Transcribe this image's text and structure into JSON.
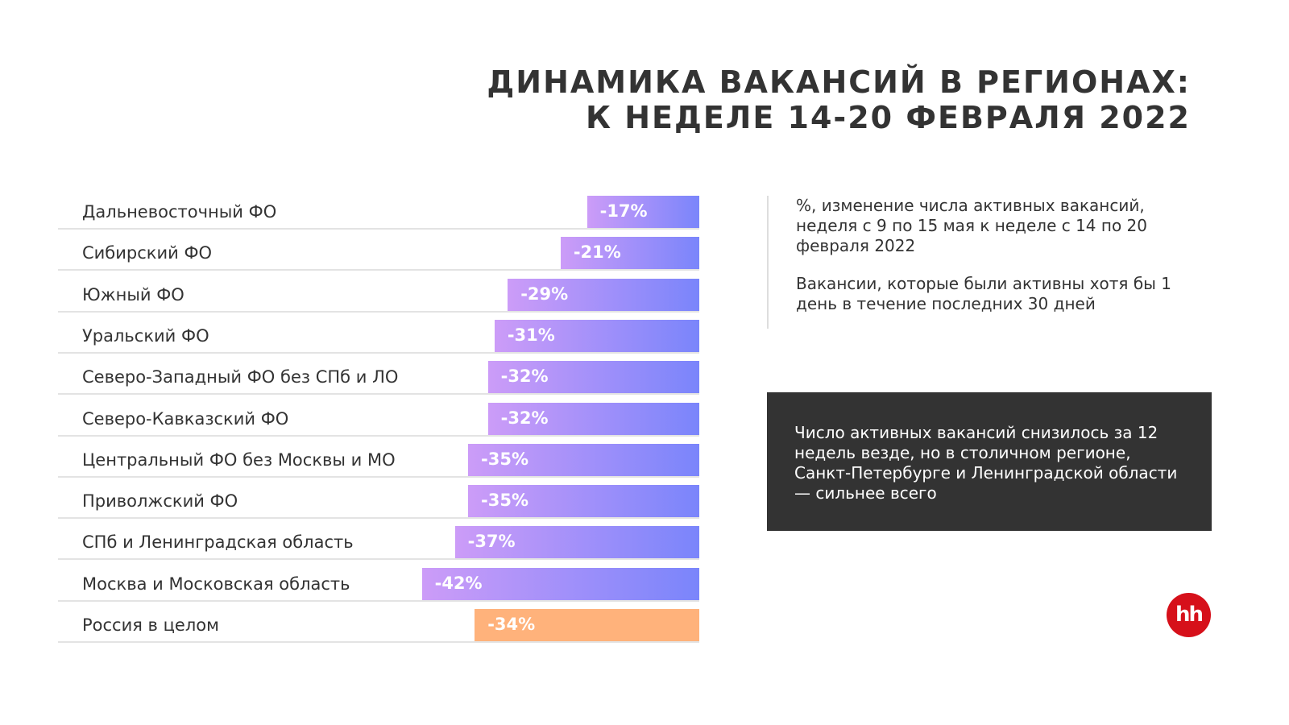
{
  "title": {
    "line1": "ДИНАМИКА ВАКАНСИЙ В РЕГИОНАХ:",
    "line2": "К НЕДЕЛЕ 14-20 ФЕВРАЛЯ 2022"
  },
  "chart_data": {
    "type": "bar",
    "orientation": "horizontal",
    "unit": "%",
    "categories": [
      "Дальневосточный ФО",
      "Сибирский ФО",
      "Южный ФО",
      "Уральский ФО",
      "Северо-Западный ФО без СПб и ЛО",
      "Северо-Кавказский ФО",
      "Центральный ФО без Москвы и МО",
      "Приволжский ФО",
      "СПб и Ленинградская область",
      "Москва и Московская область",
      "Россия в целом"
    ],
    "values": [
      -17,
      -21,
      -29,
      -31,
      -32,
      -32,
      -35,
      -35,
      -37,
      -42,
      -34
    ],
    "labels": [
      "-17%",
      "-21%",
      "-29%",
      "-31%",
      "-32%",
      "-32%",
      "-35%",
      "-35%",
      "-37%",
      "-42%",
      "-34%"
    ],
    "colors": {
      "region_gradient": [
        "#cc9cf8",
        "#7a85fb"
      ],
      "total": "#ffb27b"
    }
  },
  "notes": {
    "p1": "%, изменение числа активных вакансий, неделя с 9 по 15 мая к неделе с 14 по 20 февраля 2022",
    "p2": "Вакансии, которые были активны хотя бы 1 день в течение последних 30 дней"
  },
  "callout": "Число активных вакансий снизилось за 12 недель везде, но в столичном регионе, Санкт-Петербурге и Ленинградской области — сильнее всего",
  "logo": "hh"
}
